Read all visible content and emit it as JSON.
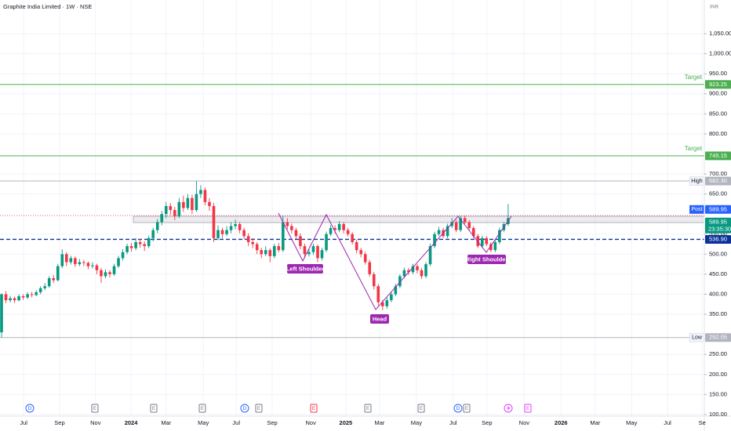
{
  "chart_data": {
    "type": "candlestick",
    "title": "Graphite India Limited · 1W · NSE",
    "y_axis_label": "INR",
    "up_color": "#089981",
    "down_color": "#f23645",
    "grid": true,
    "ylim": [
      94,
      1134
    ],
    "xlim": [
      -0.36,
      162.3
    ],
    "yticks": [
      {
        "value": 100,
        "label": "100.00"
      },
      {
        "value": 150,
        "label": "150.00"
      },
      {
        "value": 200,
        "label": "200.00"
      },
      {
        "value": 250,
        "label": "250.00"
      },
      {
        "value": 350,
        "label": "350.00"
      },
      {
        "value": 400,
        "label": "400.00"
      },
      {
        "value": 450,
        "label": "450.00"
      },
      {
        "value": 500,
        "label": "500.00"
      },
      {
        "value": 550,
        "label": "550.00"
      },
      {
        "value": 650,
        "label": "650.00"
      },
      {
        "value": 700,
        "label": "700.00"
      },
      {
        "value": 800,
        "label": "800.00"
      },
      {
        "value": 850,
        "label": "850.00"
      },
      {
        "value": 900,
        "label": "900.00"
      },
      {
        "value": 950,
        "label": "950.00"
      },
      {
        "value": 1000,
        "label": "1,000.00"
      },
      {
        "value": 1050,
        "label": "1,050.00"
      }
    ],
    "xticks": [
      {
        "value": 5.1,
        "label": "Jul"
      },
      {
        "value": 13.4,
        "label": "Sep"
      },
      {
        "value": 21.7,
        "label": "Nov"
      },
      {
        "value": 29.9,
        "label": "2024"
      },
      {
        "value": 38,
        "label": "Mar"
      },
      {
        "value": 46.6,
        "label": "May"
      },
      {
        "value": 54.2,
        "label": "Jul"
      },
      {
        "value": 62.5,
        "label": "Sep"
      },
      {
        "value": 71.4,
        "label": "Nov"
      },
      {
        "value": 79.5,
        "label": "2025"
      },
      {
        "value": 87.3,
        "label": "Mar"
      },
      {
        "value": 95.8,
        "label": "May"
      },
      {
        "value": 104.3,
        "label": "Jul"
      },
      {
        "value": 112.1,
        "label": "Sep"
      },
      {
        "value": 120.7,
        "label": "Nov"
      },
      {
        "value": 129.2,
        "label": "2026"
      },
      {
        "value": 137.1,
        "label": "Mar"
      },
      {
        "value": 145.5,
        "label": "May"
      },
      {
        "value": 153.8,
        "label": "Jul"
      },
      {
        "value": 161.8,
        "label": "Se"
      }
    ],
    "ohlc": [
      [
        305,
        402,
        292.05,
        400
      ],
      [
        400,
        408,
        378,
        385
      ],
      [
        385,
        396,
        380,
        390
      ],
      [
        390,
        394,
        378,
        385
      ],
      [
        385,
        400,
        382,
        395
      ],
      [
        395,
        400,
        386,
        392
      ],
      [
        392,
        405,
        388,
        400
      ],
      [
        400,
        406,
        392,
        398
      ],
      [
        398,
        410,
        395,
        405
      ],
      [
        405,
        420,
        400,
        415
      ],
      [
        415,
        428,
        410,
        420
      ],
      [
        420,
        445,
        416,
        440
      ],
      [
        440,
        448,
        428,
        435
      ],
      [
        435,
        476,
        432,
        470
      ],
      [
        470,
        512,
        465,
        500
      ],
      [
        500,
        505,
        470,
        480
      ],
      [
        480,
        496,
        474,
        490
      ],
      [
        490,
        494,
        468,
        475
      ],
      [
        475,
        488,
        470,
        480
      ],
      [
        480,
        486,
        470,
        478
      ],
      [
        478,
        482,
        462,
        470
      ],
      [
        470,
        480,
        464,
        472
      ],
      [
        472,
        476,
        450,
        460
      ],
      [
        460,
        466,
        428,
        445
      ],
      [
        445,
        462,
        440,
        455
      ],
      [
        455,
        460,
        442,
        450
      ],
      [
        450,
        476,
        446,
        470
      ],
      [
        470,
        496,
        466,
        490
      ],
      [
        490,
        512,
        484,
        505
      ],
      [
        505,
        526,
        500,
        520
      ],
      [
        520,
        528,
        506,
        515
      ],
      [
        515,
        540,
        510,
        530
      ],
      [
        530,
        538,
        516,
        525
      ],
      [
        525,
        532,
        508,
        520
      ],
      [
        520,
        546,
        515,
        540
      ],
      [
        540,
        566,
        532,
        560
      ],
      [
        560,
        588,
        552,
        580
      ],
      [
        580,
        608,
        572,
        600
      ],
      [
        600,
        630,
        590,
        620
      ],
      [
        620,
        628,
        598,
        610
      ],
      [
        610,
        618,
        585,
        595
      ],
      [
        595,
        640,
        590,
        630
      ],
      [
        630,
        646,
        605,
        615
      ],
      [
        615,
        650,
        610,
        640
      ],
      [
        640,
        648,
        600,
        610
      ],
      [
        610,
        682.3,
        605,
        650
      ],
      [
        650,
        672,
        640,
        660
      ],
      [
        660,
        666,
        622,
        630
      ],
      [
        630,
        640,
        608,
        620
      ],
      [
        620,
        628,
        530,
        540
      ],
      [
        540,
        572,
        535,
        560
      ],
      [
        560,
        566,
        540,
        550
      ],
      [
        550,
        570,
        545,
        560
      ],
      [
        560,
        580,
        552,
        570
      ],
      [
        570,
        586,
        562,
        575
      ],
      [
        575,
        580,
        552,
        560
      ],
      [
        560,
        566,
        538,
        545
      ],
      [
        545,
        552,
        520,
        530
      ],
      [
        530,
        540,
        515,
        525
      ],
      [
        525,
        530,
        500,
        510
      ],
      [
        510,
        516,
        490,
        500
      ],
      [
        500,
        520,
        495,
        510
      ],
      [
        510,
        515,
        480,
        495
      ],
      [
        495,
        526,
        490,
        520
      ],
      [
        520,
        528,
        505,
        510
      ],
      [
        510,
        596,
        505,
        580
      ],
      [
        580,
        590,
        562,
        570
      ],
      [
        570,
        576,
        552,
        560
      ],
      [
        560,
        566,
        538,
        545
      ],
      [
        545,
        552,
        512,
        520
      ],
      [
        520,
        526,
        490,
        500
      ],
      [
        500,
        512,
        494,
        505
      ],
      [
        505,
        526,
        498,
        520
      ],
      [
        520,
        524,
        480,
        490
      ],
      [
        490,
        516,
        484,
        510
      ],
      [
        510,
        556,
        505,
        550
      ],
      [
        550,
        572,
        545,
        565
      ],
      [
        565,
        572,
        552,
        560
      ],
      [
        560,
        582,
        555,
        575
      ],
      [
        575,
        580,
        552,
        560
      ],
      [
        560,
        566,
        544,
        550
      ],
      [
        550,
        555,
        524,
        530
      ],
      [
        530,
        536,
        502,
        510
      ],
      [
        510,
        516,
        492,
        500
      ],
      [
        500,
        506,
        474,
        480
      ],
      [
        480,
        486,
        444,
        450
      ],
      [
        450,
        456,
        412,
        420
      ],
      [
        420,
        426,
        372,
        380
      ],
      [
        380,
        386,
        360,
        370
      ],
      [
        370,
        392,
        364,
        385
      ],
      [
        385,
        406,
        380,
        400
      ],
      [
        400,
        426,
        395,
        420
      ],
      [
        420,
        450,
        415,
        445
      ],
      [
        445,
        466,
        440,
        460
      ],
      [
        460,
        466,
        448,
        455
      ],
      [
        455,
        476,
        450,
        470
      ],
      [
        470,
        475,
        452,
        460
      ],
      [
        460,
        466,
        438,
        445
      ],
      [
        445,
        480,
        440,
        475
      ],
      [
        475,
        526,
        470,
        520
      ],
      [
        520,
        556,
        515,
        550
      ],
      [
        550,
        568,
        545,
        560
      ],
      [
        560,
        566,
        540,
        545
      ],
      [
        545,
        576,
        540,
        570
      ],
      [
        570,
        590,
        565,
        580
      ],
      [
        580,
        586,
        555,
        560
      ],
      [
        560,
        596,
        555,
        590
      ],
      [
        590,
        596,
        575,
        580
      ],
      [
        580,
        585,
        560,
        565
      ],
      [
        565,
        570,
        540,
        545
      ],
      [
        545,
        550,
        515,
        520
      ],
      [
        520,
        546,
        515,
        540
      ],
      [
        540,
        545,
        520,
        525
      ],
      [
        525,
        530,
        505,
        510
      ],
      [
        510,
        536,
        505,
        530
      ],
      [
        530,
        566,
        525,
        560
      ],
      [
        560,
        580,
        555,
        575
      ],
      [
        575,
        625,
        570,
        589.95
      ]
    ],
    "levels": [
      {
        "name": "Target",
        "value": 923.25,
        "label": "923.25",
        "color": "#4caf50",
        "style": "solid"
      },
      {
        "name": "Target",
        "value": 745.15,
        "label": "745.15",
        "color": "#4caf50",
        "style": "solid"
      },
      {
        "name": "High",
        "value": 682.3,
        "label": "682.30",
        "color": "#b2b5be",
        "style": "solid"
      },
      {
        "name": "Post",
        "value": 589.95,
        "label": "589.95",
        "color": "#2962ff",
        "style": "none"
      },
      {
        "value": 589.95,
        "label": "589.95",
        "countdown": "23:35:30",
        "color": "#089981",
        "style": "none"
      },
      {
        "value": 536.9,
        "label": "536.90",
        "color": "#0c3299",
        "style": "dashed"
      },
      {
        "name": "Low",
        "value": 292.05,
        "label": "292.05",
        "color": "#b2b5be",
        "style": "solid"
      }
    ],
    "pattern_labels": [
      "Left Shoulder",
      "Head",
      "Right Shoulder"
    ],
    "events": [
      {
        "label": "D",
        "color": "#2962ff"
      },
      {
        "label": "E",
        "color": "#787b86"
      },
      {
        "label": "E",
        "color": "#787b86"
      },
      {
        "label": "E",
        "color": "#787b86"
      },
      {
        "label": "D",
        "color": "#2962ff"
      },
      {
        "label": "E",
        "color": "#787b86"
      },
      {
        "label": "E",
        "color": "#f23645"
      },
      {
        "label": "E",
        "color": "#787b86"
      },
      {
        "label": "E",
        "color": "#787b86"
      },
      {
        "label": "D",
        "color": "#2962ff"
      },
      {
        "label": "E",
        "color": "#787b86"
      },
      {
        "label": "E",
        "color": "#e040fb"
      }
    ]
  }
}
